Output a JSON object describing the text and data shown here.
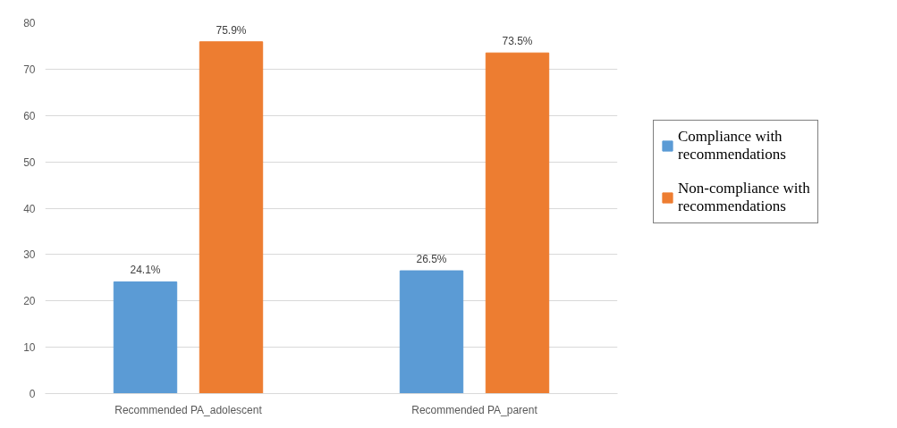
{
  "chart_data": {
    "type": "bar",
    "categories": [
      "Recommended PA_adolescent",
      "Recommended PA_parent"
    ],
    "series": [
      {
        "name": "Compliance with recommendations",
        "color": "#5b9bd5",
        "values": [
          24.1,
          26.5
        ],
        "value_labels": [
          "24.1%",
          "26.5%"
        ]
      },
      {
        "name": "Non-compliance with recommendations",
        "color": "#ed7d31",
        "values": [
          75.9,
          73.5
        ],
        "value_labels": [
          "75.9%",
          "73.5%"
        ]
      }
    ],
    "ylim": [
      0,
      80
    ],
    "yticks": [
      0,
      10,
      20,
      30,
      40,
      50,
      60,
      70,
      80
    ],
    "grid": "y",
    "legend": "right"
  }
}
